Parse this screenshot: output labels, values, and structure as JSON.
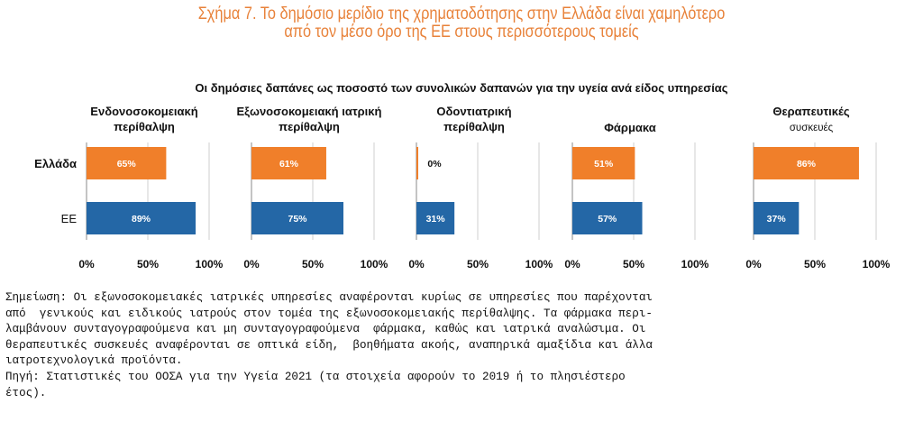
{
  "figure": {
    "title_line1": "Σχήμα 7. Το δημόσιο μερίδιο της χρηματοδότησης στην Ελλάδα είναι χαμηλότερο",
    "title_line2": "από τον μέσο όρο της ΕΕ στους περισσότερους τομείς"
  },
  "chart_data": {
    "type": "bar",
    "orientation": "horizontal",
    "title": "Οι δημόσιες δαπάνες ως ποσοστό των συνολικών δαπανών για την υγεία ανά είδος υπηρεσίας",
    "categories": [
      "Ελλάδα",
      "ΕΕ"
    ],
    "xlim": [
      0,
      100
    ],
    "x_tick_labels": [
      "0%",
      "50%",
      "100%"
    ],
    "grid": true,
    "colors": {
      "Ελλάδα": "#f07f2a",
      "ΕΕ": "#2467a6"
    },
    "panels": [
      {
        "title_lines": [
          "Ενδονοσοκομειακή",
          "περίθαλψη"
        ],
        "bold": true,
        "values": [
          65,
          89
        ],
        "labels": [
          "65%",
          "89%"
        ]
      },
      {
        "title_lines": [
          "Εξωνοσοκομειακή ιατρική",
          "περίθαλψη"
        ],
        "bold": true,
        "values": [
          61,
          75
        ],
        "labels": [
          "61%",
          "75%"
        ]
      },
      {
        "title_lines": [
          "Οδοντιατρική",
          "περίθαλψη"
        ],
        "bold": true,
        "values": [
          0,
          31
        ],
        "labels": [
          "0%",
          "31%"
        ]
      },
      {
        "title_lines": [
          "Φάρμακα"
        ],
        "bold": true,
        "values": [
          51,
          57
        ],
        "labels": [
          "51%",
          "57%"
        ]
      },
      {
        "title_lines": [
          "Θεραπευτικές",
          "συσκευές"
        ],
        "bold": false,
        "values": [
          86,
          37
        ],
        "labels": [
          "86%",
          "37%"
        ]
      }
    ]
  },
  "note_lines": [
    "Σημείωση: Οι εξωνοσοκομειακές ιατρικές υπηρεσίες αναφέρονται κυρίως σε υπηρεσίες που παρέχονται",
    "από  γενικούς και ειδικούς ιατρούς στον τομέα της εξωνοσοκομειακής περίθαλψης. Τα φάρμακα περι-",
    "λαμβάνουν συνταγογραφούμενα και μη συνταγογραφούμενα  φάρμακα, καθώς και ιατρικά αναλώσιμα. Οι",
    "θεραπευτικές συσκευές αναφέρονται σε οπτικά είδη,  βοηθήματα ακοής, αναπηρικά αμαξίδια και άλλα",
    "ιατροτεχνολογικά προϊόντα.",
    "Πηγή: Στατιστικές του ΟΟΣΑ για την Υγεία 2021 (τα στοιχεία αφορούν το 2019 ή το πλησιέστερο",
    "έτος)."
  ]
}
